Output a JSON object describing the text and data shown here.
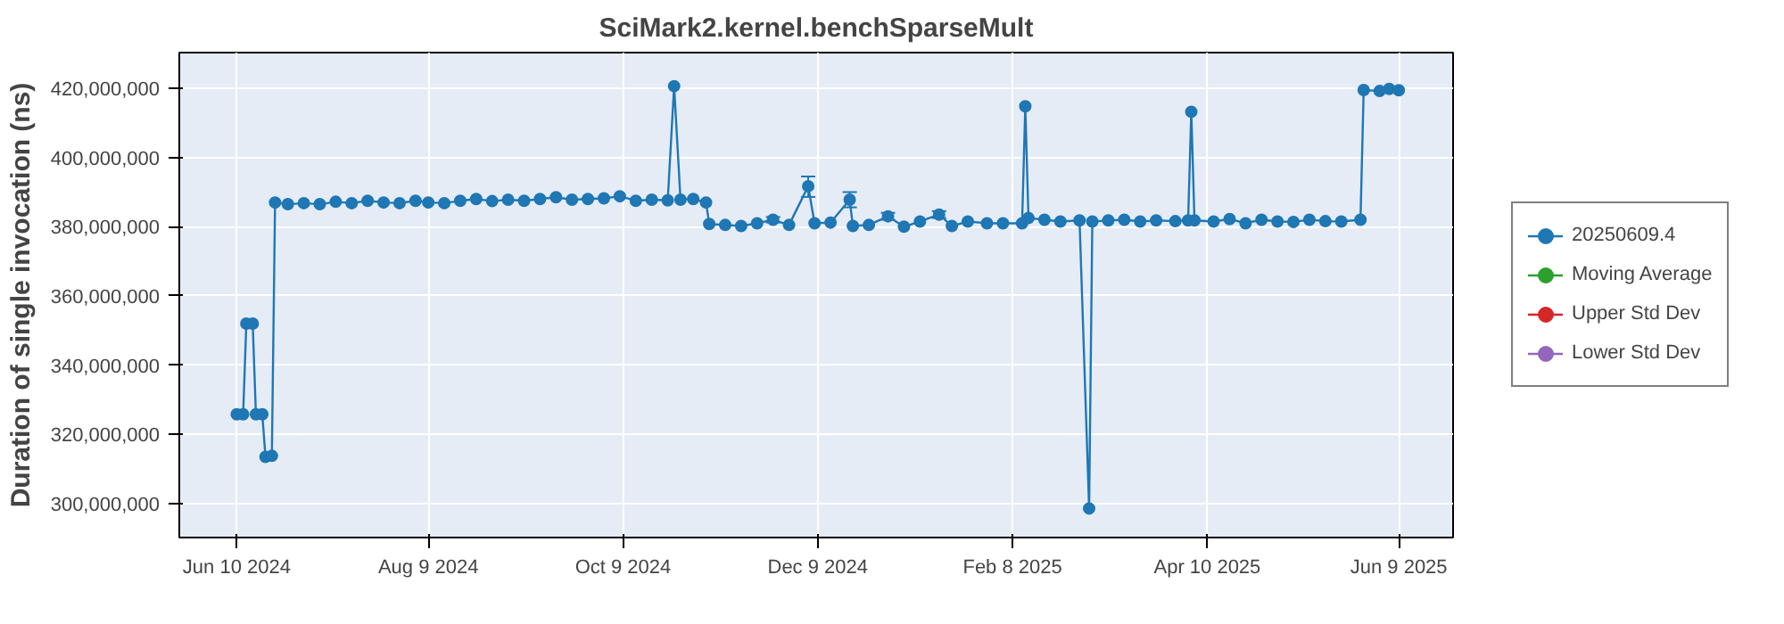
{
  "chart_data": {
    "type": "line",
    "title": "SciMark2.kernel.benchSparseMult",
    "ylabel": "Duration of single invocation (ns)",
    "marker": "circle",
    "line_style": "solid",
    "grid": true,
    "legend": "right",
    "xlim": [
      "2024-05-23",
      "2025-06-26"
    ],
    "xticks": [
      {
        "value": "2024-06-10",
        "label": "Jun 10 2024"
      },
      {
        "value": "2024-08-09",
        "label": "Aug 9 2024"
      },
      {
        "value": "2024-10-09",
        "label": "Oct 9 2024"
      },
      {
        "value": "2024-12-09",
        "label": "Dec 9 2024"
      },
      {
        "value": "2025-02-08",
        "label": "Feb 8 2025"
      },
      {
        "value": "2025-04-10",
        "label": "Apr 10 2025"
      },
      {
        "value": "2025-06-09",
        "label": "Jun 9 2025"
      }
    ],
    "ylim": [
      290200000,
      430300000
    ],
    "yticks": [
      {
        "value": 300000000,
        "label": "300,000,000"
      },
      {
        "value": 320000000,
        "label": "320,000,000"
      },
      {
        "value": 340000000,
        "label": "340,000,000"
      },
      {
        "value": 360000000,
        "label": "360,000,000"
      },
      {
        "value": 380000000,
        "label": "380,000,000"
      },
      {
        "value": 400000000,
        "label": "400,000,000"
      },
      {
        "value": 420000000,
        "label": "420,000,000"
      }
    ],
    "x": [
      "2024-06-10",
      "2024-06-12",
      "2024-06-13",
      "2024-06-15",
      "2024-06-16",
      "2024-06-18",
      "2024-06-19",
      "2024-06-21",
      "2024-06-22",
      "2024-06-26",
      "2024-07-01",
      "2024-07-06",
      "2024-07-11",
      "2024-07-16",
      "2024-07-21",
      "2024-07-26",
      "2024-07-31",
      "2024-08-05",
      "2024-08-09",
      "2024-08-14",
      "2024-08-19",
      "2024-08-24",
      "2024-08-29",
      "2024-09-03",
      "2024-09-08",
      "2024-09-13",
      "2024-09-18",
      "2024-09-23",
      "2024-09-28",
      "2024-10-03",
      "2024-10-08",
      "2024-10-13",
      "2024-10-18",
      "2024-10-23",
      "2024-10-25",
      "2024-10-27",
      "2024-10-31",
      "2024-11-04",
      "2024-11-05",
      "2024-11-10",
      "2024-11-15",
      "2024-11-20",
      "2024-11-25",
      "2024-11-30",
      "2024-12-06",
      "2024-12-08",
      "2024-12-13",
      "2024-12-19",
      "2024-12-20",
      "2024-12-25",
      "2024-12-31",
      "2025-01-05",
      "2025-01-10",
      "2025-01-16",
      "2025-01-20",
      "2025-01-25",
      "2025-01-31",
      "2025-02-05",
      "2025-02-11",
      "2025-02-12",
      "2025-02-13",
      "2025-02-18",
      "2025-02-23",
      "2025-03-01",
      "2025-03-04",
      "2025-03-05",
      "2025-03-10",
      "2025-03-15",
      "2025-03-20",
      "2025-03-25",
      "2025-03-31",
      "2025-04-04",
      "2025-04-05",
      "2025-04-06",
      "2025-04-12",
      "2025-04-17",
      "2025-04-22",
      "2025-04-27",
      "2025-05-02",
      "2025-05-07",
      "2025-05-12",
      "2025-05-17",
      "2025-05-22",
      "2025-05-28",
      "2025-05-29",
      "2025-06-03",
      "2025-06-06",
      "2025-06-09"
    ],
    "series": [
      {
        "name": "20250609.4",
        "color": "#1f77b4",
        "values": [
          325800000,
          325800000,
          352000000,
          352000000,
          325800000,
          325800000,
          313500000,
          313800000,
          387000000,
          386500000,
          386800000,
          386500000,
          387200000,
          386800000,
          387500000,
          387000000,
          386800000,
          387500000,
          387000000,
          386800000,
          387500000,
          388000000,
          387400000,
          387800000,
          387500000,
          388000000,
          388500000,
          387800000,
          388000000,
          388200000,
          388800000,
          387500000,
          387800000,
          387600000,
          420600000,
          387800000,
          388000000,
          387000000,
          380800000,
          380500000,
          380200000,
          381000000,
          382000000,
          380500000,
          391700000,
          381000000,
          381200000,
          387800000,
          380200000,
          380500000,
          383000000,
          380000000,
          381500000,
          383500000,
          380200000,
          381500000,
          381000000,
          381000000,
          381000000,
          414800000,
          382500000,
          382000000,
          381500000,
          381800000,
          298600000,
          381500000,
          381800000,
          382000000,
          381500000,
          381800000,
          381600000,
          381800000,
          413200000,
          381800000,
          381500000,
          382200000,
          381000000,
          382000000,
          381500000,
          381400000,
          382000000,
          381600000,
          381500000,
          382000000,
          419500000,
          419200000,
          419800000,
          419400000
        ],
        "errors": [
          null,
          null,
          null,
          null,
          null,
          null,
          null,
          null,
          null,
          null,
          null,
          null,
          null,
          null,
          null,
          null,
          null,
          null,
          null,
          null,
          null,
          null,
          null,
          null,
          null,
          null,
          null,
          null,
          null,
          null,
          null,
          null,
          null,
          null,
          null,
          null,
          null,
          null,
          null,
          null,
          null,
          null,
          [
            381200000,
            382800000
          ],
          null,
          [
            388600000,
            394500000
          ],
          null,
          null,
          [
            385600000,
            390000000
          ],
          null,
          null,
          [
            382000000,
            384000000
          ],
          null,
          null,
          [
            382500000,
            384500000
          ],
          null,
          null,
          null,
          null,
          null,
          null,
          null,
          null,
          null,
          null,
          null,
          null,
          null,
          null,
          null,
          null,
          null,
          null,
          null,
          null,
          null,
          null,
          null,
          null,
          null,
          null,
          null,
          null,
          null,
          null,
          null,
          null,
          null,
          null
        ]
      },
      {
        "name": "Moving Average",
        "color": "#2ca02c",
        "values": [
          null,
          null,
          null,
          null,
          null,
          null,
          null,
          null,
          null,
          null,
          null,
          null,
          null,
          null,
          null,
          null,
          null,
          null,
          null,
          null,
          null,
          null,
          null,
          null,
          null,
          null,
          null,
          null,
          null,
          null,
          null,
          null,
          null,
          null,
          null,
          null,
          null,
          null,
          null,
          null,
          null,
          null,
          null,
          null,
          null,
          null,
          null,
          null,
          null,
          null,
          null,
          null,
          null,
          null,
          null,
          null,
          null,
          null,
          null,
          null,
          null,
          null,
          null,
          null,
          null,
          null,
          null,
          null,
          null,
          null,
          null,
          null,
          null,
          null,
          null,
          null,
          null,
          null,
          null,
          null,
          null,
          null,
          null,
          null,
          null,
          null,
          null,
          null
        ]
      },
      {
        "name": "Upper Std Dev",
        "color": "#d62728",
        "values": [
          null,
          null,
          null,
          null,
          null,
          null,
          null,
          null,
          null,
          null,
          null,
          null,
          null,
          null,
          null,
          null,
          null,
          null,
          null,
          null,
          null,
          null,
          null,
          null,
          null,
          null,
          null,
          null,
          null,
          null,
          null,
          null,
          null,
          null,
          null,
          null,
          null,
          null,
          null,
          null,
          null,
          null,
          null,
          null,
          null,
          null,
          null,
          null,
          null,
          null,
          null,
          null,
          null,
          null,
          null,
          null,
          null,
          null,
          null,
          null,
          null,
          null,
          null,
          null,
          null,
          null,
          null,
          null,
          null,
          null,
          null,
          null,
          null,
          null,
          null,
          null,
          null,
          null,
          null,
          null,
          null,
          null,
          null,
          null,
          null,
          null,
          null,
          null
        ]
      },
      {
        "name": "Lower Std Dev",
        "color": "#9467bd",
        "values": [
          null,
          null,
          null,
          null,
          null,
          null,
          null,
          null,
          null,
          null,
          null,
          null,
          null,
          null,
          null,
          null,
          null,
          null,
          null,
          null,
          null,
          null,
          null,
          null,
          null,
          null,
          null,
          null,
          null,
          null,
          null,
          null,
          null,
          null,
          null,
          null,
          null,
          null,
          null,
          null,
          null,
          null,
          null,
          null,
          null,
          null,
          null,
          null,
          null,
          null,
          null,
          null,
          null,
          null,
          null,
          null,
          null,
          null,
          null,
          null,
          null,
          null,
          null,
          null,
          null,
          null,
          null,
          null,
          null,
          null,
          null,
          null,
          null,
          null,
          null,
          null,
          null,
          null,
          null,
          null,
          null,
          null,
          null,
          null,
          null,
          null,
          null,
          null
        ]
      }
    ]
  }
}
